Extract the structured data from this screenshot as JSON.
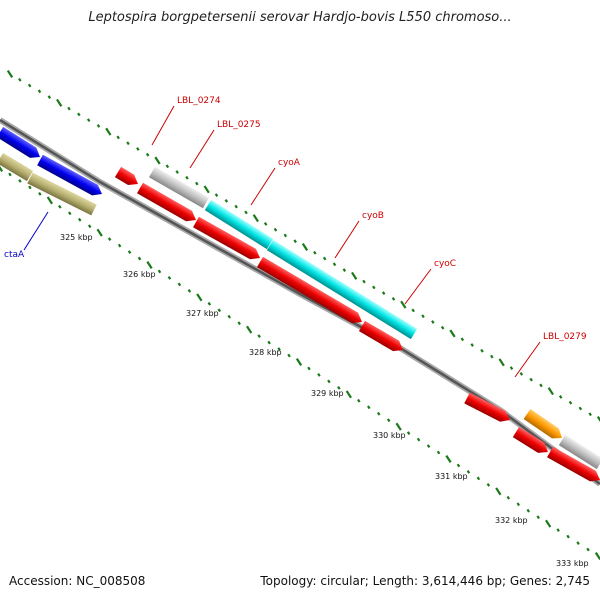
{
  "title": "Leptospira borgpetersenii serovar Hardjo-bovis L550 chromoso...",
  "footer": {
    "accession": "Accession: NC_008508",
    "summary": "Topology: circular; Length: 3,614,446 bp; Genes: 2,745"
  },
  "colors": {
    "backbone_dark": "#555555",
    "backbone_light": "#aaaaaa",
    "tick": "#1a7a1a",
    "gene_label_red": "#cc0000",
    "gene_label_blue": "#0000cc",
    "cds_red": "#ee0000",
    "cds_blue": "#0000ee",
    "cds_olive": "#b8b070",
    "cds_grey": "#c0c0c0",
    "cds_cyan": "#00e5e5",
    "cds_orange": "#ff9900"
  },
  "ticks": {
    "labels": [
      "325 kbp",
      "326 kbp",
      "327 kbp",
      "328 kbp",
      "329 kbp",
      "330 kbp",
      "331 kbp",
      "332 kbp",
      "333 kbp"
    ]
  },
  "gene_labels": [
    {
      "name": "LBL_0274",
      "color": "red"
    },
    {
      "name": "LBL_0275",
      "color": "red"
    },
    {
      "name": "cyoA",
      "color": "red"
    },
    {
      "name": "cyoB",
      "color": "red"
    },
    {
      "name": "cyoC",
      "color": "red"
    },
    {
      "name": "LBL_0279",
      "color": "red"
    },
    {
      "name": "ctaA",
      "color": "blue"
    }
  ]
}
